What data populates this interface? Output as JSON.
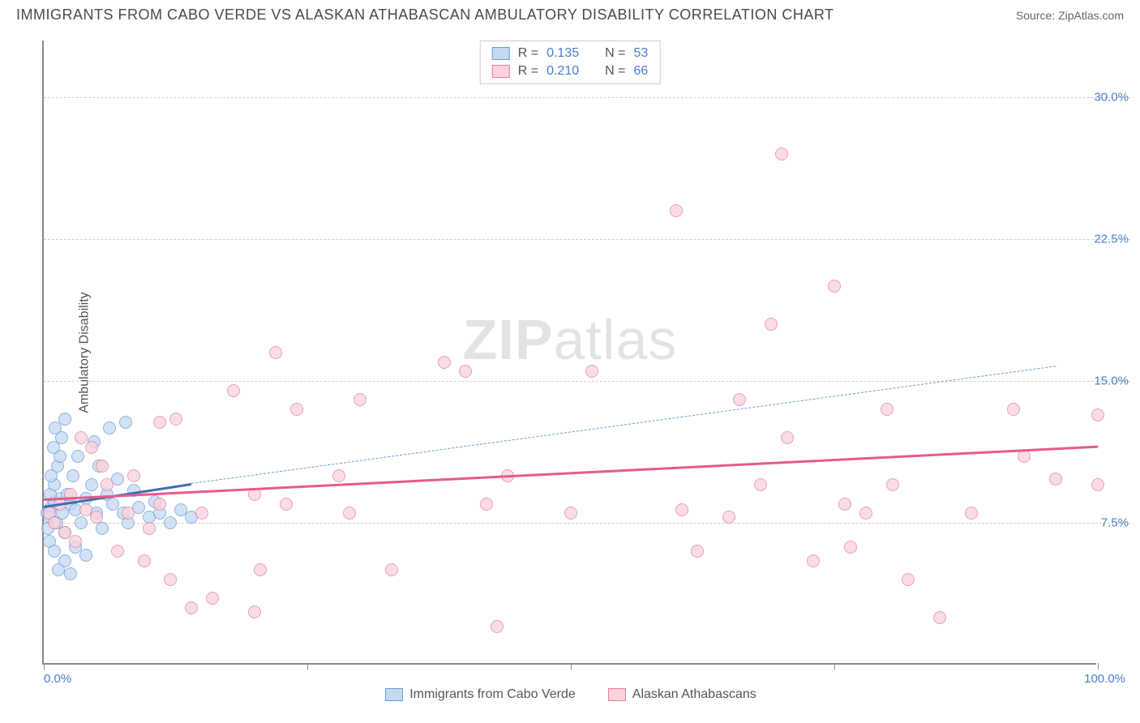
{
  "title": "IMMIGRANTS FROM CABO VERDE VS ALASKAN ATHABASCAN AMBULATORY DISABILITY CORRELATION CHART",
  "source": "Source: ZipAtlas.com",
  "watermark_bold": "ZIP",
  "watermark_light": "atlas",
  "chart": {
    "type": "scatter",
    "y_label": "Ambulatory Disability",
    "xlim": [
      0,
      100
    ],
    "ylim": [
      0,
      33
    ],
    "y_ticks": [
      7.5,
      15.0,
      22.5,
      30.0
    ],
    "y_tick_labels": [
      "7.5%",
      "15.0%",
      "22.5%",
      "30.0%"
    ],
    "x_ticks": [
      0,
      25,
      50,
      75,
      100
    ],
    "x_min_label": "0.0%",
    "x_max_label": "100.0%",
    "grid_color": "#d0d0d0",
    "axis_color": "#888888",
    "background_color": "#ffffff",
    "label_color": "#4a7ec9",
    "point_radius": 8,
    "series": [
      {
        "name": "Immigrants from Cabo Verde",
        "fill": "#c3d9f1",
        "stroke": "#6a9bd8",
        "R": "0.135",
        "N": "53",
        "trend": {
          "x1": 0,
          "y1": 8.4,
          "x2": 14,
          "y2": 9.6,
          "dash": false,
          "width": 3,
          "color": "#3d6db5"
        },
        "trend_ext": {
          "x1": 14,
          "y1": 9.6,
          "x2": 96,
          "y2": 15.8,
          "dash": true,
          "width": 1.5,
          "color": "#6a9bd8"
        },
        "points": [
          [
            0.3,
            8.0
          ],
          [
            0.5,
            8.2
          ],
          [
            0.8,
            8.4
          ],
          [
            0.5,
            7.8
          ],
          [
            1.0,
            8.6
          ],
          [
            1.2,
            7.5
          ],
          [
            1.5,
            8.8
          ],
          [
            0.4,
            7.2
          ],
          [
            0.6,
            9.0
          ],
          [
            1.0,
            9.5
          ],
          [
            1.8,
            8.0
          ],
          [
            2.0,
            7.0
          ],
          [
            2.5,
            8.5
          ],
          [
            0.7,
            10.0
          ],
          [
            1.3,
            10.5
          ],
          [
            1.5,
            11.0
          ],
          [
            2.2,
            9.0
          ],
          [
            3.0,
            8.2
          ],
          [
            3.5,
            7.5
          ],
          [
            4.0,
            8.8
          ],
          [
            0.9,
            11.5
          ],
          [
            1.7,
            12.0
          ],
          [
            2.8,
            10.0
          ],
          [
            4.5,
            9.5
          ],
          [
            5.0,
            8.0
          ],
          [
            5.5,
            7.2
          ],
          [
            6.0,
            9.0
          ],
          [
            1.1,
            12.5
          ],
          [
            0.5,
            6.5
          ],
          [
            1.0,
            6.0
          ],
          [
            2.0,
            5.5
          ],
          [
            3.0,
            6.2
          ],
          [
            4.0,
            5.8
          ],
          [
            1.4,
            5.0
          ],
          [
            2.5,
            4.8
          ],
          [
            6.5,
            8.5
          ],
          [
            7.0,
            9.8
          ],
          [
            7.5,
            8.0
          ],
          [
            8.0,
            7.5
          ],
          [
            5.2,
            10.5
          ],
          [
            4.8,
            11.8
          ],
          [
            6.2,
            12.5
          ],
          [
            7.8,
            12.8
          ],
          [
            3.2,
            11.0
          ],
          [
            2.0,
            13.0
          ],
          [
            8.5,
            9.2
          ],
          [
            9.0,
            8.3
          ],
          [
            10.0,
            7.8
          ],
          [
            10.5,
            8.6
          ],
          [
            11.0,
            8.0
          ],
          [
            12.0,
            7.5
          ],
          [
            13.0,
            8.2
          ],
          [
            14.0,
            7.8
          ]
        ]
      },
      {
        "name": "Alaskan Athabascans",
        "fill": "#f9d2db",
        "stroke": "#e87ea1",
        "R": "0.210",
        "N": "66",
        "trend": {
          "x1": 0,
          "y1": 8.8,
          "x2": 100,
          "y2": 11.6,
          "dash": false,
          "width": 3,
          "color": "#e85a8a"
        },
        "points": [
          [
            0.5,
            8.0
          ],
          [
            1.0,
            7.5
          ],
          [
            1.5,
            8.5
          ],
          [
            2.0,
            7.0
          ],
          [
            2.5,
            9.0
          ],
          [
            3.0,
            6.5
          ],
          [
            4.0,
            8.2
          ],
          [
            5.0,
            7.8
          ],
          [
            6.0,
            9.5
          ],
          [
            7.0,
            6.0
          ],
          [
            8.0,
            8.0
          ],
          [
            5.5,
            10.5
          ],
          [
            4.5,
            11.5
          ],
          [
            3.5,
            12.0
          ],
          [
            8.5,
            10.0
          ],
          [
            9.5,
            5.5
          ],
          [
            10.0,
            7.2
          ],
          [
            11.0,
            8.5
          ],
          [
            12.0,
            4.5
          ],
          [
            14.0,
            3.0
          ],
          [
            11.0,
            12.8
          ],
          [
            12.5,
            13.0
          ],
          [
            15.0,
            8.0
          ],
          [
            16.0,
            3.5
          ],
          [
            18.0,
            14.5
          ],
          [
            20.0,
            9.0
          ],
          [
            20.5,
            5.0
          ],
          [
            20.0,
            2.8
          ],
          [
            22.0,
            16.5
          ],
          [
            23.0,
            8.5
          ],
          [
            24.0,
            13.5
          ],
          [
            28.0,
            10.0
          ],
          [
            29.0,
            8.0
          ],
          [
            30.0,
            14.0
          ],
          [
            33.0,
            5.0
          ],
          [
            38.0,
            16.0
          ],
          [
            40.0,
            15.5
          ],
          [
            42.0,
            8.5
          ],
          [
            43.0,
            2.0
          ],
          [
            44.0,
            10.0
          ],
          [
            50.0,
            8.0
          ],
          [
            52.0,
            15.5
          ],
          [
            60.0,
            24.0
          ],
          [
            60.5,
            8.2
          ],
          [
            62.0,
            6.0
          ],
          [
            65.0,
            7.8
          ],
          [
            66.0,
            14.0
          ],
          [
            68.0,
            9.5
          ],
          [
            69.0,
            18.0
          ],
          [
            70.0,
            27.0
          ],
          [
            70.5,
            12.0
          ],
          [
            73.0,
            5.5
          ],
          [
            75.0,
            20.0
          ],
          [
            76.0,
            8.5
          ],
          [
            76.5,
            6.2
          ],
          [
            78.0,
            8.0
          ],
          [
            80.0,
            13.5
          ],
          [
            80.5,
            9.5
          ],
          [
            82.0,
            4.5
          ],
          [
            85.0,
            2.5
          ],
          [
            88.0,
            8.0
          ],
          [
            92.0,
            13.5
          ],
          [
            93.0,
            11.0
          ],
          [
            96.0,
            9.8
          ],
          [
            100.0,
            13.2
          ],
          [
            100.0,
            9.5
          ]
        ]
      }
    ],
    "legend_top": {
      "label_R": "R =",
      "label_N": "N ="
    }
  }
}
